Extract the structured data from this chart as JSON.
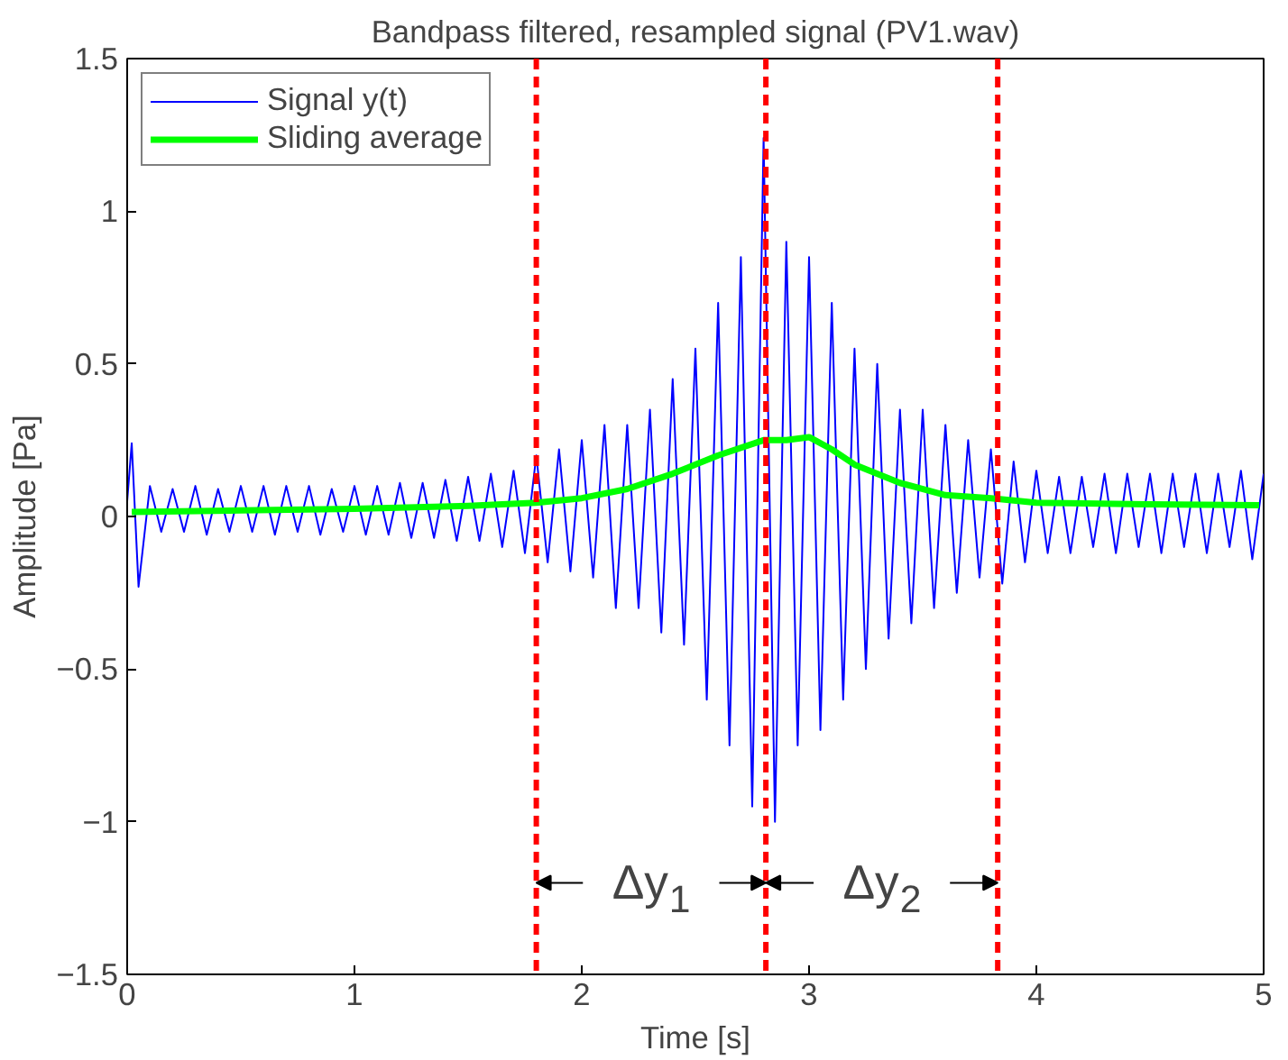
{
  "chart_data": {
    "type": "line",
    "title": "Bandpass filtered, resampled signal (PV1.wav)",
    "xlabel": "Time [s]",
    "ylabel": "Amplitude [Pa]",
    "xlim": [
      0,
      5
    ],
    "ylim": [
      -1.5,
      1.5
    ],
    "xticks": [
      0,
      1,
      2,
      3,
      4,
      5
    ],
    "yticks": [
      -1.5,
      -1,
      -0.5,
      0,
      0.5,
      1,
      1.5
    ],
    "grid": false,
    "legend": "top left",
    "series": [
      {
        "name": "Signal y(t)",
        "color": "#0000ff",
        "x": [
          0,
          0.02,
          0.05,
          0.1,
          0.15,
          0.2,
          0.25,
          0.3,
          0.35,
          0.4,
          0.45,
          0.5,
          0.55,
          0.6,
          0.65,
          0.7,
          0.75,
          0.8,
          0.85,
          0.9,
          0.95,
          1.0,
          1.05,
          1.1,
          1.15,
          1.2,
          1.25,
          1.3,
          1.35,
          1.4,
          1.45,
          1.5,
          1.55,
          1.6,
          1.65,
          1.7,
          1.75,
          1.8,
          1.85,
          1.9,
          1.95,
          2.0,
          2.05,
          2.1,
          2.15,
          2.2,
          2.25,
          2.3,
          2.35,
          2.4,
          2.45,
          2.5,
          2.55,
          2.6,
          2.65,
          2.7,
          2.75,
          2.8,
          2.85,
          2.9,
          2.95,
          3.0,
          3.05,
          3.1,
          3.15,
          3.2,
          3.25,
          3.3,
          3.35,
          3.4,
          3.45,
          3.5,
          3.55,
          3.6,
          3.65,
          3.7,
          3.75,
          3.8,
          3.85,
          3.9,
          3.95,
          4.0,
          4.05,
          4.1,
          4.15,
          4.2,
          4.25,
          4.3,
          4.35,
          4.4,
          4.45,
          4.5,
          4.55,
          4.6,
          4.65,
          4.7,
          4.75,
          4.8,
          4.85,
          4.9,
          4.95,
          5.0
        ],
        "values": [
          0.05,
          0.24,
          -0.23,
          0.1,
          -0.05,
          0.09,
          -0.05,
          0.1,
          -0.06,
          0.09,
          -0.05,
          0.1,
          -0.05,
          0.1,
          -0.06,
          0.1,
          -0.05,
          0.1,
          -0.06,
          0.09,
          -0.05,
          0.1,
          -0.06,
          0.1,
          -0.06,
          0.11,
          -0.07,
          0.11,
          -0.07,
          0.12,
          -0.08,
          0.13,
          -0.08,
          0.14,
          -0.1,
          0.15,
          -0.12,
          0.2,
          -0.15,
          0.22,
          -0.18,
          0.25,
          -0.2,
          0.3,
          -0.3,
          0.3,
          -0.3,
          0.35,
          -0.38,
          0.45,
          -0.42,
          0.55,
          -0.6,
          0.7,
          -0.75,
          0.85,
          -0.95,
          1.24,
          -1.0,
          0.9,
          -0.75,
          0.85,
          -0.7,
          0.7,
          -0.6,
          0.55,
          -0.5,
          0.5,
          -0.4,
          0.35,
          -0.35,
          0.35,
          -0.3,
          0.3,
          -0.25,
          0.25,
          -0.2,
          0.22,
          -0.22,
          0.18,
          -0.15,
          0.15,
          -0.12,
          0.13,
          -0.12,
          0.13,
          -0.1,
          0.14,
          -0.12,
          0.14,
          -0.1,
          0.14,
          -0.12,
          0.14,
          -0.1,
          0.14,
          -0.12,
          0.14,
          -0.1,
          0.15,
          -0.14,
          0.14
        ]
      },
      {
        "name": "Sliding average",
        "color": "#00ff00",
        "x": [
          0.02,
          0.5,
          1.0,
          1.5,
          1.8,
          2.0,
          2.2,
          2.4,
          2.6,
          2.8,
          2.9,
          3.0,
          3.1,
          3.2,
          3.4,
          3.6,
          3.8,
          4.0,
          4.5,
          4.98
        ],
        "values": [
          0.015,
          0.02,
          0.025,
          0.035,
          0.045,
          0.06,
          0.09,
          0.14,
          0.2,
          0.25,
          0.25,
          0.26,
          0.22,
          0.17,
          0.11,
          0.07,
          0.06,
          0.045,
          0.04,
          0.037
        ]
      }
    ],
    "ref_lines": [
      {
        "axis": "x",
        "value": 1.8,
        "color": "#ff0000",
        "line_style": "dashed"
      },
      {
        "axis": "x",
        "value": 2.81,
        "color": "#ff0000",
        "line_style": "dashed"
      },
      {
        "axis": "x",
        "value": 3.83,
        "color": "#ff0000",
        "line_style": "dashed"
      }
    ],
    "annotations": [
      {
        "text": "Δy$_{1}$",
        "x": 1.8,
        "y": -1.2
      },
      {
        "text": "Δy$_{2}$",
        "x": 2.81,
        "y": -1.2
      }
    ]
  }
}
